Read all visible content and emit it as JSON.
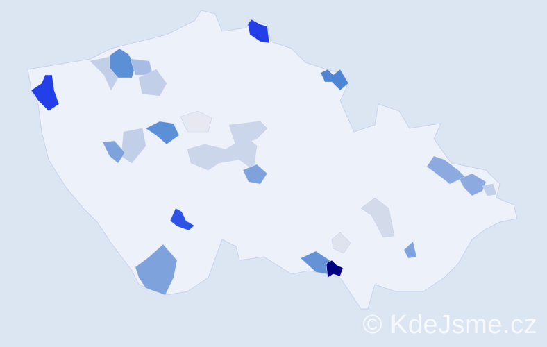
{
  "map": {
    "background_color": "#dce5f2",
    "land_color": "#edf1f9",
    "border_color": "#c9d3ee",
    "regions": [
      {
        "id": "r1",
        "fill": "#2340e8"
      },
      {
        "id": "r2",
        "fill": "#2340e8"
      },
      {
        "id": "r3",
        "fill": "#5b8fd6"
      },
      {
        "id": "r4",
        "fill": "#2340e8"
      },
      {
        "id": "r5",
        "fill": "#4d84d4"
      },
      {
        "id": "r6",
        "fill": "#c2cfe8"
      },
      {
        "id": "r7",
        "fill": "#a7bce4"
      },
      {
        "id": "r8",
        "fill": "#c2cfe8"
      },
      {
        "id": "r9",
        "fill": "#e6e9f2"
      },
      {
        "id": "r10",
        "fill": "#5b8fd6"
      },
      {
        "id": "r11",
        "fill": "#c2cfe8"
      },
      {
        "id": "r12",
        "fill": "#7ea2dc"
      },
      {
        "id": "r13",
        "fill": "#cbd6ea"
      },
      {
        "id": "r14",
        "fill": "#cbd6ea"
      },
      {
        "id": "r15",
        "fill": "#7ea2dc"
      },
      {
        "id": "r16",
        "fill": "#2d52e6"
      },
      {
        "id": "r17",
        "fill": "#7ea2dc"
      },
      {
        "id": "r18",
        "fill": "#8ca9e0"
      },
      {
        "id": "r19",
        "fill": "#8ca9e0"
      },
      {
        "id": "r20",
        "fill": "#c2cfe8"
      },
      {
        "id": "r21",
        "fill": "#d3dbeb"
      },
      {
        "id": "r22",
        "fill": "#dfe3ee"
      },
      {
        "id": "r23",
        "fill": "#6393d6"
      },
      {
        "id": "r24",
        "fill": "#000080"
      },
      {
        "id": "r25",
        "fill": "#7ea2dc"
      }
    ]
  },
  "watermark": "© KdeJsme.cz"
}
